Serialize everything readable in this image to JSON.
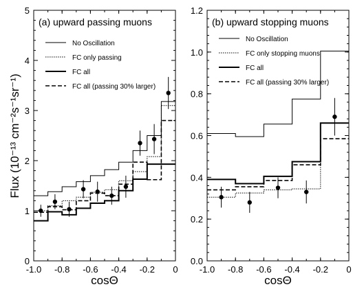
{
  "ylabel": "Flux (10⁻¹³ cm⁻²s⁻¹sr⁻¹)",
  "chart_data": [
    {
      "type": "line",
      "title": "(a) upward passing muons",
      "xlabel": "cosΘ",
      "xlim": [
        -1.0,
        0.0
      ],
      "ylim": [
        0,
        5
      ],
      "xticks": [
        "-1.0",
        "-0.8",
        "-0.6",
        "-0.4",
        "-0.2",
        "0"
      ],
      "yticks": [
        "0",
        "1",
        "2",
        "3",
        "4",
        "5"
      ],
      "bin_edges": [
        -1.0,
        -0.9,
        -0.8,
        -0.7,
        -0.6,
        -0.5,
        -0.4,
        -0.3,
        -0.2,
        -0.1,
        0.0
      ],
      "series": [
        {
          "name": "No Oscillation",
          "style": "thin-solid",
          "values": [
            1.3,
            1.38,
            1.48,
            1.58,
            1.7,
            1.82,
            1.97,
            2.2,
            2.5,
            3.18
          ]
        },
        {
          "name": "FC only passing",
          "style": "dotted",
          "values": [
            1.0,
            1.1,
            1.2,
            1.27,
            1.37,
            1.42,
            1.6,
            1.78,
            2.08,
            3.1
          ]
        },
        {
          "name": "FC all",
          "style": "thick-solid",
          "values": [
            0.8,
            0.98,
            0.92,
            1.05,
            1.15,
            1.2,
            1.4,
            1.63,
            1.93,
            1.93
          ]
        },
        {
          "name": "FC all (passing 30% larger)",
          "style": "dashed",
          "values": [
            0.97,
            1.08,
            1.02,
            1.2,
            1.35,
            1.3,
            1.53,
            1.97,
            1.62,
            2.8
          ]
        }
      ],
      "data_points": [
        {
          "x": -0.95,
          "y": 1.0,
          "err": 0.12
        },
        {
          "x": -0.85,
          "y": 1.18,
          "err": 0.15
        },
        {
          "x": -0.75,
          "y": 1.03,
          "err": 0.15
        },
        {
          "x": -0.65,
          "y": 1.43,
          "err": 0.18
        },
        {
          "x": -0.55,
          "y": 1.38,
          "err": 0.2
        },
        {
          "x": -0.45,
          "y": 1.3,
          "err": 0.18
        },
        {
          "x": -0.35,
          "y": 1.48,
          "err": 0.22
        },
        {
          "x": -0.25,
          "y": 2.35,
          "err": 0.25
        },
        {
          "x": -0.15,
          "y": 2.43,
          "err": 0.3
        },
        {
          "x": -0.05,
          "y": 3.35,
          "err": 0.32
        }
      ]
    },
    {
      "type": "line",
      "title": "(b) upward stopping muons",
      "xlabel": "cosΘ",
      "xlim": [
        -1.0,
        0.0
      ],
      "ylim": [
        0.0,
        1.2
      ],
      "xticks": [
        "-1.0",
        "-0.8",
        "-0.6",
        "-0.4",
        "-0.2",
        "0"
      ],
      "yticks": [
        "0.0",
        "0.2",
        "0.4",
        "0.6",
        "0.8",
        "1.0",
        "1.2"
      ],
      "bin_edges": [
        -1.0,
        -0.8,
        -0.6,
        -0.4,
        -0.2,
        0.0
      ],
      "series": [
        {
          "name": "No Oscillation",
          "style": "thin-solid",
          "values": [
            0.61,
            0.595,
            0.655,
            0.775,
            1.005
          ]
        },
        {
          "name": "FC only stopping muons",
          "style": "dotted",
          "values": [
            0.305,
            0.325,
            0.34,
            0.345,
            0.66
          ]
        },
        {
          "name": "FC all",
          "style": "thick-solid",
          "values": [
            0.39,
            0.37,
            0.405,
            0.475,
            0.66
          ]
        },
        {
          "name": "FC all (passing 30% larger)",
          "style": "dashed",
          "values": [
            0.34,
            0.355,
            0.385,
            0.46,
            0.585
          ]
        }
      ],
      "data_points": [
        {
          "x": -0.9,
          "y": 0.305,
          "err": 0.05
        },
        {
          "x": -0.7,
          "y": 0.28,
          "err": 0.05
        },
        {
          "x": -0.5,
          "y": 0.35,
          "err": 0.05
        },
        {
          "x": -0.3,
          "y": 0.33,
          "err": 0.055
        },
        {
          "x": -0.1,
          "y": 0.69,
          "err": 0.09
        }
      ]
    }
  ]
}
